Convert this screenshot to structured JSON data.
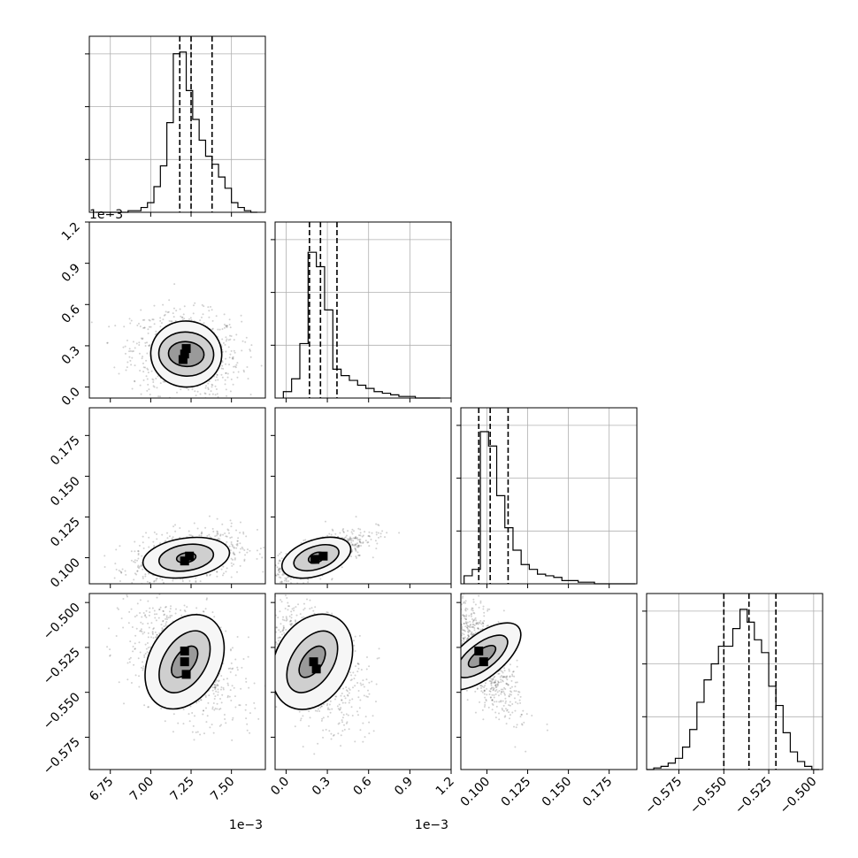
{
  "chart_data": {
    "type": "corner",
    "parameters": [
      {
        "ticks": [
          6.75,
          7.0,
          7.25,
          7.5
        ],
        "tick_labels": [
          "6.75",
          "7.00",
          "7.25",
          "7.50"
        ],
        "offset_label": "1e−3",
        "range": [
          6.62,
          7.71
        ],
        "quantiles": [
          7.18,
          7.25,
          7.38
        ],
        "hist_bins": [
          6.66,
          6.7,
          6.74,
          6.78,
          6.82,
          6.86,
          6.9,
          6.94,
          6.98,
          7.02,
          7.06,
          7.1,
          7.14,
          7.18,
          7.22,
          7.26,
          7.3,
          7.34,
          7.38,
          7.42,
          7.46,
          7.5,
          7.54,
          7.58,
          7.62,
          7.66
        ],
        "hist_counts": [
          0.0,
          0.0,
          0.0,
          0.0,
          0.0,
          0.01,
          0.01,
          0.03,
          0.06,
          0.16,
          0.29,
          0.56,
          0.99,
          1.0,
          0.76,
          0.58,
          0.45,
          0.35,
          0.3,
          0.22,
          0.15,
          0.06,
          0.03,
          0.01,
          0.0
        ]
      },
      {
        "ticks": [
          0.0,
          0.3,
          0.6,
          0.9,
          1.2
        ],
        "tick_labels": [
          "0.0",
          "0.3",
          "0.6",
          "0.9",
          "1.2"
        ],
        "offset_label": "1e−3",
        "range": [
          -0.08,
          1.2
        ],
        "quantiles": [
          0.17,
          0.25,
          0.37
        ],
        "hist_bins": [
          -0.02,
          0.04,
          0.1,
          0.16,
          0.22,
          0.28,
          0.34,
          0.4,
          0.46,
          0.52,
          0.58,
          0.64,
          0.7,
          0.76,
          0.82,
          0.88,
          0.94,
          1.0,
          1.06,
          1.12
        ],
        "hist_counts": [
          0.04,
          0.12,
          0.34,
          0.91,
          0.82,
          0.55,
          0.18,
          0.14,
          0.11,
          0.08,
          0.06,
          0.04,
          0.03,
          0.02,
          0.01,
          0.01,
          0.0,
          0.0,
          0.0
        ]
      },
      {
        "ticks": [
          0.1,
          0.125,
          0.15,
          0.175
        ],
        "tick_labels": [
          "0.100",
          "0.125",
          "0.150",
          "0.175"
        ],
        "range": [
          0.084,
          0.192
        ],
        "quantiles": [
          0.095,
          0.102,
          0.113
        ],
        "hist_bins": [
          0.086,
          0.091,
          0.096,
          0.101,
          0.106,
          0.111,
          0.116,
          0.121,
          0.126,
          0.131,
          0.136,
          0.141,
          0.146,
          0.151,
          0.156,
          0.161,
          0.166,
          0.171,
          0.176,
          0.181,
          0.186,
          0.191
        ],
        "hist_counts": [
          0.05,
          0.09,
          0.95,
          0.86,
          0.55,
          0.35,
          0.21,
          0.12,
          0.09,
          0.06,
          0.05,
          0.04,
          0.02,
          0.02,
          0.01,
          0.01,
          0.0,
          0.0,
          0.0,
          0.0,
          0.0
        ]
      },
      {
        "ticks": [
          -0.575,
          -0.55,
          -0.525,
          -0.5
        ],
        "tick_labels": [
          "−0.575",
          "−0.550",
          "−0.525",
          "−0.500"
        ],
        "range": [
          -0.593,
          -0.495
        ],
        "quantiles": [
          -0.55,
          -0.536,
          -0.521
        ],
        "hist_bins": [
          -0.593,
          -0.589,
          -0.585,
          -0.581,
          -0.577,
          -0.573,
          -0.569,
          -0.565,
          -0.561,
          -0.557,
          -0.553,
          -0.549,
          -0.545,
          -0.541,
          -0.537,
          -0.533,
          -0.529,
          -0.525,
          -0.521,
          -0.517,
          -0.513,
          -0.509,
          -0.505,
          -0.501,
          -0.497
        ],
        "hist_counts": [
          0.0,
          0.01,
          0.02,
          0.04,
          0.07,
          0.14,
          0.25,
          0.42,
          0.56,
          0.66,
          0.77,
          0.77,
          0.88,
          1.0,
          0.92,
          0.81,
          0.73,
          0.52,
          0.4,
          0.23,
          0.11,
          0.05,
          0.02,
          0.0
        ]
      }
    ],
    "pairs": [
      {
        "x": 0,
        "y": 1,
        "center": [
          7.22,
          0.24
        ],
        "spread": [
          0.12,
          0.11
        ],
        "rho": -0.1,
        "contours": [
          [
            0.11,
            0.09
          ],
          [
            0.17,
            0.16
          ],
          [
            0.22,
            0.24
          ]
        ],
        "dense": [
          [
            7.21,
            0.24
          ],
          [
            7.2,
            0.2
          ],
          [
            7.22,
            0.28
          ]
        ]
      },
      {
        "x": 0,
        "y": 2,
        "center": [
          7.22,
          0.1
        ],
        "spread": [
          0.12,
          0.006
        ],
        "rho": 0.35,
        "contours": [
          [
            0.06,
            0.003
          ],
          [
            0.17,
            0.008
          ],
          [
            0.27,
            0.012
          ]
        ],
        "dense": [
          [
            7.21,
            0.098
          ],
          [
            7.24,
            0.101
          ]
        ]
      },
      {
        "x": 1,
        "y": 2,
        "center": [
          0.22,
          0.1
        ],
        "spread": [
          0.13,
          0.006
        ],
        "rho": 0.75,
        "contours": [
          [
            0.06,
            0.003
          ],
          [
            0.17,
            0.007
          ],
          [
            0.26,
            0.011
          ]
        ],
        "dense": [
          [
            0.21,
            0.099
          ],
          [
            0.27,
            0.101
          ]
        ]
      },
      {
        "x": 0,
        "y": 3,
        "center": [
          7.21,
          -0.533
        ],
        "spread": [
          0.12,
          0.012
        ],
        "rho": -0.45,
        "contours": [
          [
            0.06,
            0.01
          ],
          [
            0.13,
            0.019
          ],
          [
            0.22,
            0.028
          ]
        ],
        "dense": [
          [
            7.21,
            -0.527
          ],
          [
            7.21,
            -0.533
          ],
          [
            7.22,
            -0.54
          ]
        ]
      },
      {
        "x": 1,
        "y": 3,
        "center": [
          0.19,
          -0.533
        ],
        "spread": [
          0.14,
          0.012
        ],
        "rho": -0.45,
        "contours": [
          [
            0.07,
            0.01
          ],
          [
            0.15,
            0.019
          ],
          [
            0.27,
            0.028
          ]
        ],
        "dense": [
          [
            0.2,
            -0.533
          ],
          [
            0.22,
            -0.537
          ]
        ]
      },
      {
        "x": 2,
        "y": 3,
        "center": [
          0.097,
          -0.53
        ],
        "spread": [
          0.008,
          0.012
        ],
        "rho": -0.7,
        "contours": [
          [
            0.004,
            0.009
          ],
          [
            0.008,
            0.017
          ],
          [
            0.013,
            0.026
          ]
        ],
        "dense": [
          [
            0.095,
            -0.527
          ],
          [
            0.098,
            -0.533
          ]
        ]
      }
    ],
    "grid": true
  }
}
